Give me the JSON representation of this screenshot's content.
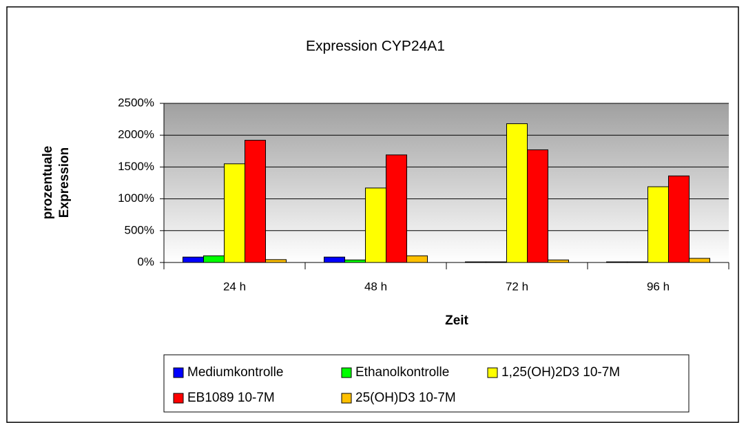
{
  "chart_data": {
    "type": "bar",
    "title": "Expression CYP24A1",
    "xlabel": "Zeit",
    "ylabel": [
      "prozentuale",
      "Expression"
    ],
    "categories": [
      "24 h",
      "48 h",
      "72 h",
      "96 h"
    ],
    "series": [
      {
        "name": "Mediumkontrolle",
        "color": "#0000ff",
        "values": [
          85,
          85,
          10,
          10
        ]
      },
      {
        "name": "Ethanolkontrolle",
        "color": "#00ff00",
        "values": [
          105,
          40,
          10,
          10
        ]
      },
      {
        "name": "1,25(OH)2D3 10-7M",
        "color": "#ffff00",
        "values": [
          1550,
          1170,
          2180,
          1190
        ]
      },
      {
        "name": "EB1089 10-7M",
        "color": "#ff0000",
        "values": [
          1920,
          1690,
          1770,
          1360
        ]
      },
      {
        "name": "25(OH)D3 10-7M",
        "color": "#ffc000",
        "values": [
          45,
          105,
          40,
          65
        ]
      }
    ],
    "ylim": [
      0,
      2500
    ],
    "yticks": [
      {
        "value": 0,
        "label": "0%"
      },
      {
        "value": 500,
        "label": "500%"
      },
      {
        "value": 1000,
        "label": "1000%"
      },
      {
        "value": 1500,
        "label": "1500%"
      },
      {
        "value": 2000,
        "label": "2000%"
      },
      {
        "value": 2500,
        "label": "2500%"
      }
    ],
    "grid": true,
    "legend": "bottom"
  }
}
